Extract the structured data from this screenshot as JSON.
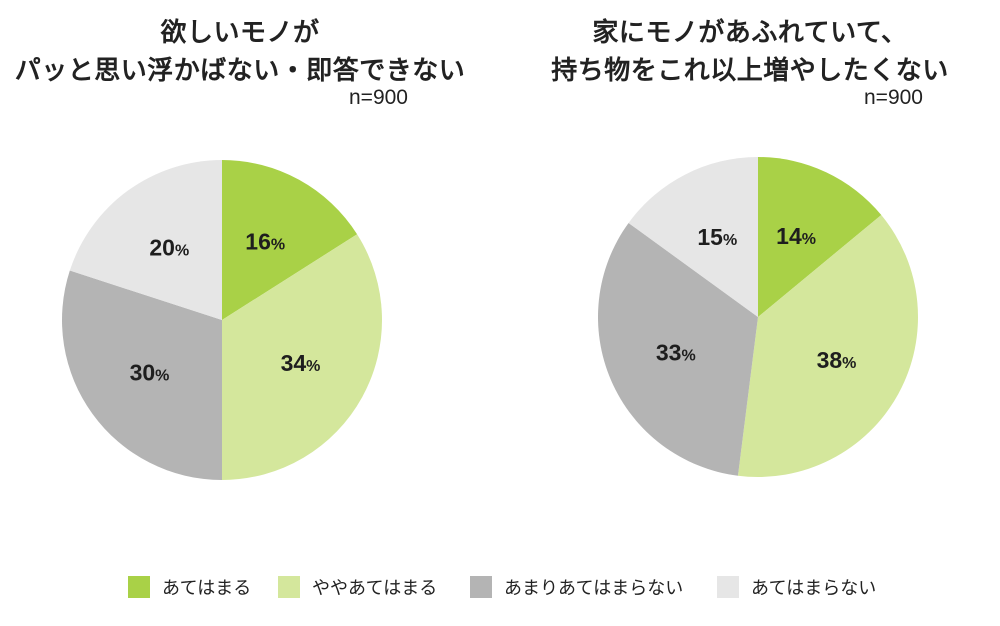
{
  "colors": {
    "atehamaru": "#a9d147",
    "yaya_atehamaru": "#d4e79c",
    "amari_atehamaranai": "#b4b4b4",
    "atehamaranai": "#e6e6e6"
  },
  "legend": [
    {
      "label": "あてはまる",
      "color_key": "atehamaru"
    },
    {
      "label": "ややあてはまる",
      "color_key": "yaya_atehamaru"
    },
    {
      "label": "あまりあてはまらない",
      "color_key": "amari_atehamaranai"
    },
    {
      "label": "あてはまらない",
      "color_key": "atehamaranai"
    }
  ],
  "chart_data": [
    {
      "type": "pie",
      "title_lines": [
        "欲しいモノが",
        "パッと思い浮かばない・即答できない"
      ],
      "n_label": "n=900",
      "categories": [
        "あてはまる",
        "ややあてはまる",
        "あまりあてはまらない",
        "あてはまらない"
      ],
      "values": [
        16,
        34,
        30,
        20
      ],
      "unit": "%"
    },
    {
      "type": "pie",
      "title_lines": [
        "家にモノがあふれていて、",
        "持ち物をこれ以上増やしたくない"
      ],
      "n_label": "n=900",
      "categories": [
        "あてはまる",
        "ややあてはまる",
        "あまりあてはまらない",
        "あてはまらない"
      ],
      "values": [
        14,
        38,
        33,
        15
      ],
      "unit": "%"
    }
  ]
}
